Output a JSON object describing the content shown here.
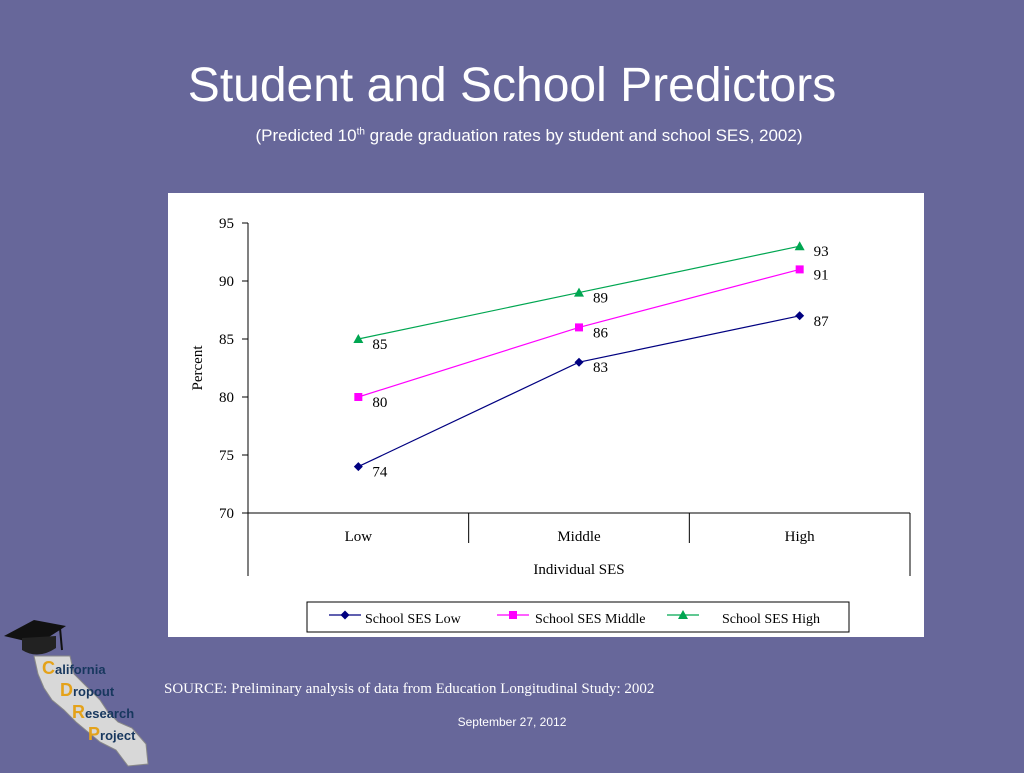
{
  "slide": {
    "title": "Student and School Predictors",
    "subtitle_before": "(Predicted 10",
    "subtitle_sup": "th",
    "subtitle_after": " grade graduation rates by student and school SES, 2002)",
    "source": "SOURCE:  Preliminary analysis of data from Education Longitudinal Study: 2002",
    "date": "September 27, 2012",
    "background_color": "#67679a"
  },
  "logo": {
    "icon": "graduation-cap-california-icon",
    "words": [
      {
        "cap": "C",
        "rest": "alifornia"
      },
      {
        "cap": "D",
        "rest": "ropout"
      },
      {
        "cap": "R",
        "rest": "esearch"
      },
      {
        "cap": "P",
        "rest": "roject"
      }
    ]
  },
  "chart_data": {
    "type": "line",
    "title": "",
    "xlabel": "Individual SES",
    "ylabel": "Percent",
    "categories": [
      "Low",
      "Middle",
      "High"
    ],
    "ylim": [
      70,
      95
    ],
    "yticks": [
      70,
      75,
      80,
      85,
      90,
      95
    ],
    "grid": false,
    "legend_position": "bottom",
    "series": [
      {
        "name": "School SES Low",
        "values": [
          74,
          83,
          87
        ],
        "color": "#000080",
        "marker": "diamond"
      },
      {
        "name": "School SES Middle",
        "values": [
          80,
          86,
          91
        ],
        "color": "#ff00ff",
        "marker": "square"
      },
      {
        "name": "School SES High",
        "values": [
          85,
          89,
          93
        ],
        "color": "#00a651",
        "marker": "triangle"
      }
    ]
  }
}
